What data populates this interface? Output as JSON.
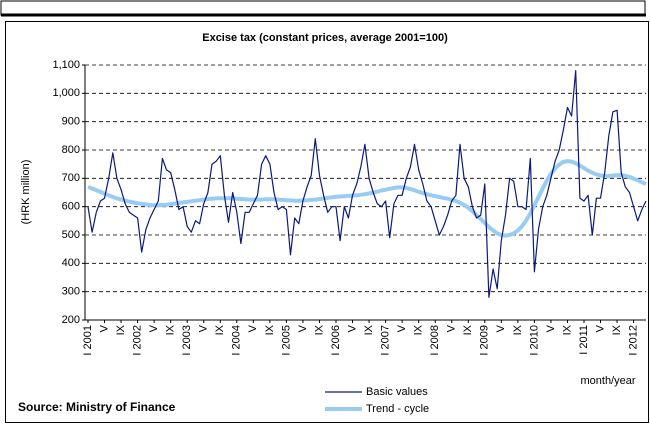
{
  "chart_data": {
    "type": "line",
    "title": "Excise tax (constant prices, average 2001=100)",
    "y_label": "(HRK million)",
    "x_label": "month/year",
    "source": "Source: Ministry of Finance",
    "categories": [
      "I 2001",
      null,
      null,
      null,
      "V",
      null,
      null,
      null,
      "IX",
      null,
      null,
      null,
      "I 2002",
      null,
      null,
      null,
      "V",
      null,
      null,
      null,
      "IX",
      null,
      null,
      null,
      "I 2003",
      null,
      null,
      null,
      "V",
      null,
      null,
      null,
      "IX",
      null,
      null,
      null,
      "I 2004",
      null,
      null,
      null,
      "V",
      null,
      null,
      null,
      "IX",
      null,
      null,
      null,
      "I 2005",
      null,
      null,
      null,
      "V",
      null,
      null,
      null,
      "IX",
      null,
      null,
      null,
      "I 2006",
      null,
      null,
      null,
      "V",
      null,
      null,
      null,
      "IX",
      null,
      null,
      null,
      "I 2007",
      null,
      null,
      null,
      "V",
      null,
      null,
      null,
      "IX",
      null,
      null,
      null,
      "I 2008",
      null,
      null,
      null,
      "V",
      null,
      null,
      null,
      "IX",
      null,
      null,
      null,
      "I 2009",
      null,
      null,
      null,
      "V",
      null,
      null,
      null,
      "IX",
      null,
      null,
      null,
      "I 2010",
      null,
      null,
      null,
      "V",
      null,
      null,
      null,
      "IX",
      null,
      null,
      null,
      "I 2011",
      null,
      null,
      null,
      "V",
      null,
      null,
      null,
      "IX",
      null,
      null,
      null,
      "I 2012",
      null,
      null,
      null
    ],
    "series": [
      {
        "name": "Basic values",
        "color": "#0a1a7a",
        "width": 1.2,
        "values": [
          600,
          510,
          580,
          620,
          630,
          700,
          790,
          700,
          660,
          610,
          580,
          570,
          560,
          440,
          520,
          560,
          590,
          620,
          770,
          730,
          720,
          660,
          590,
          600,
          530,
          510,
          550,
          540,
          610,
          650,
          750,
          760,
          780,
          640,
          545,
          650,
          580,
          470,
          580,
          580,
          610,
          640,
          750,
          780,
          750,
          650,
          590,
          600,
          590,
          430,
          560,
          540,
          620,
          670,
          710,
          840,
          710,
          640,
          580,
          600,
          600,
          480,
          600,
          560,
          640,
          680,
          740,
          820,
          700,
          650,
          610,
          600,
          620,
          490,
          610,
          640,
          640,
          700,
          740,
          820,
          730,
          680,
          620,
          600,
          550,
          500,
          530,
          570,
          620,
          640,
          820,
          700,
          670,
          600,
          560,
          570,
          680,
          280,
          380,
          310,
          480,
          570,
          700,
          690,
          600,
          600,
          590,
          770,
          370,
          520,
          600,
          640,
          700,
          760,
          800,
          870,
          950,
          920,
          1080,
          630,
          620,
          640,
          500,
          630,
          630,
          720,
          850,
          935,
          940,
          720,
          670,
          650,
          600,
          550,
          590,
          620
        ]
      },
      {
        "name": "Trend - cycle",
        "color": "#99ccf2",
        "width": 4,
        "values": [
          670,
          664,
          658,
          652,
          646,
          640,
          634,
          629,
          625,
          621,
          618,
          615,
          612,
          610,
          608,
          606,
          605,
          605,
          606,
          607,
          609,
          611,
          613,
          615,
          617,
          619,
          621,
          623,
          625,
          627,
          628,
          629,
          630,
          630,
          630,
          629,
          628,
          627,
          626,
          625,
          625,
          625,
          625,
          626,
          626,
          626,
          625,
          624,
          623,
          622,
          621,
          621,
          622,
          623,
          624,
          625,
          627,
          629,
          631,
          633,
          635,
          636,
          637,
          638,
          639,
          640,
          642,
          644,
          647,
          650,
          653,
          657,
          660,
          663,
          666,
          668,
          668,
          666,
          662,
          658,
          653,
          648,
          644,
          640,
          637,
          634,
          631,
          628,
          624,
          620,
          614,
          606,
          596,
          584,
          570,
          556,
          542,
          528,
          516,
          506,
          500,
          498,
          500,
          506,
          516,
          531,
          551,
          576,
          604,
          634,
          664,
          692,
          716,
          735,
          749,
          758,
          761,
          759,
          753,
          745,
          736,
          727,
          720,
          714,
          710,
          708,
          708,
          710,
          711,
          711,
          709,
          705,
          699,
          693,
          686,
          680
        ]
      }
    ],
    "ylim": [
      200,
      1100
    ],
    "yticks": [
      200,
      300,
      400,
      500,
      600,
      700,
      800,
      900,
      {
        "value": 1000,
        "label": "1,000"
      },
      {
        "value": 1100,
        "label": "1,100"
      }
    ],
    "grid": true
  }
}
